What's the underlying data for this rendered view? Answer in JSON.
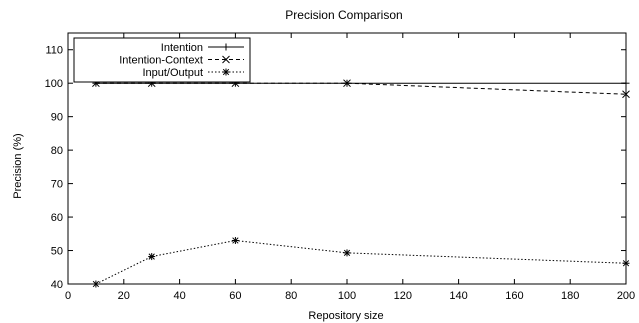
{
  "chart_data": {
    "type": "line",
    "title": "Precision Comparison",
    "xlabel": "Repository size",
    "ylabel": "Precision (%)",
    "xlim": [
      0,
      200
    ],
    "ylim": [
      40,
      115
    ],
    "x_ticks": [
      "0",
      "20",
      "40",
      "60",
      "80",
      "100",
      "120",
      "140",
      "160",
      "180",
      "200"
    ],
    "y_ticks": [
      "40",
      "50",
      "60",
      "70",
      "80",
      "90",
      "100",
      "110"
    ],
    "grid": false,
    "legend_position": "top-left",
    "series": [
      {
        "name": "Intention",
        "line_style": "solid",
        "marker": "plus",
        "x": [
          10,
          30,
          60,
          100,
          200
        ],
        "values": [
          100,
          100,
          100,
          100,
          100
        ]
      },
      {
        "name": "Intention-Context",
        "line_style": "dashed",
        "marker": "cross",
        "x": [
          10,
          30,
          60,
          100,
          200
        ],
        "values": [
          100,
          100,
          100,
          100,
          96.7
        ]
      },
      {
        "name": "Input/Output",
        "line_style": "dotted",
        "marker": "star",
        "x": [
          10,
          30,
          60,
          100,
          200
        ],
        "values": [
          40,
          48.2,
          53,
          49.3,
          46.2
        ]
      }
    ]
  }
}
